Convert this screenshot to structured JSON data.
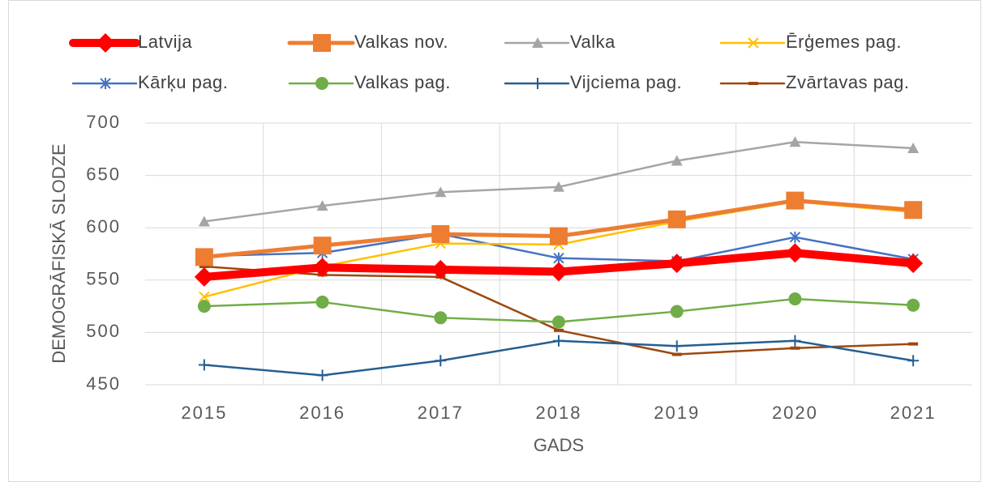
{
  "chart_data": {
    "type": "line",
    "xlabel": "GADS",
    "ylabel": "DEMOGRĀFISKĀ SLODZE",
    "categories": [
      "2015",
      "2016",
      "2017",
      "2018",
      "2019",
      "2020",
      "2021"
    ],
    "ylim": [
      450,
      700
    ],
    "yticks": [
      450,
      500,
      550,
      600,
      650,
      700
    ],
    "grid": true,
    "legend": "top",
    "series": [
      {
        "name": "Latvija",
        "color": "#ff0000",
        "marker": "diamond",
        "values": [
          553,
          562,
          560,
          558,
          566,
          576,
          566
        ]
      },
      {
        "name": "Valkas nov.",
        "color": "#ed7d31",
        "marker": "square",
        "values": [
          572,
          583,
          594,
          592,
          608,
          626,
          617
        ]
      },
      {
        "name": "Valka",
        "color": "#a5a5a5",
        "marker": "triangle",
        "values": [
          606,
          621,
          634,
          639,
          664,
          682,
          676
        ]
      },
      {
        "name": "Ērģemes pag.",
        "color": "#ffc000",
        "marker": "x",
        "values": [
          534,
          563,
          585,
          584,
          606,
          625,
          615
        ]
      },
      {
        "name": "Kārķu pag.",
        "color": "#4472c4",
        "marker": "asterisk",
        "values": [
          573,
          576,
          594,
          571,
          568,
          591,
          570
        ]
      },
      {
        "name": "Valkas pag.",
        "color": "#70ad47",
        "marker": "circle",
        "values": [
          525,
          529,
          514,
          510,
          520,
          532,
          526
        ]
      },
      {
        "name": "Vijciema pag.",
        "color": "#255e91",
        "marker": "plus",
        "values": [
          469,
          459,
          473,
          492,
          487,
          492,
          473
        ]
      },
      {
        "name": "Zvārtavas pag.",
        "color": "#9e480e",
        "marker": "dash",
        "values": [
          563,
          555,
          553,
          502,
          479,
          485,
          489
        ]
      }
    ]
  }
}
